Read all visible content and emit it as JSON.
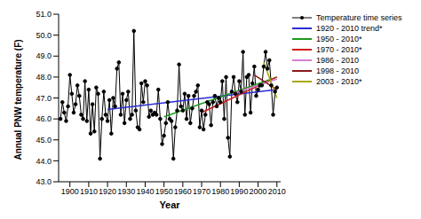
{
  "chart_data": {
    "type": "line",
    "x_label": "Year",
    "y_label": "Annual PNW temperature (F)",
    "x": [
      1895,
      1896,
      1897,
      1898,
      1899,
      1900,
      1901,
      1902,
      1903,
      1904,
      1905,
      1906,
      1907,
      1908,
      1909,
      1910,
      1911,
      1912,
      1913,
      1914,
      1915,
      1916,
      1917,
      1918,
      1919,
      1920,
      1921,
      1922,
      1923,
      1924,
      1925,
      1926,
      1927,
      1928,
      1929,
      1930,
      1931,
      1932,
      1933,
      1934,
      1935,
      1936,
      1937,
      1938,
      1939,
      1940,
      1941,
      1942,
      1943,
      1944,
      1945,
      1946,
      1947,
      1948,
      1949,
      1950,
      1951,
      1952,
      1953,
      1954,
      1955,
      1956,
      1957,
      1958,
      1959,
      1960,
      1961,
      1962,
      1963,
      1964,
      1965,
      1966,
      1967,
      1968,
      1969,
      1970,
      1971,
      1972,
      1973,
      1974,
      1975,
      1976,
      1977,
      1978,
      1979,
      1980,
      1981,
      1982,
      1983,
      1984,
      1985,
      1986,
      1987,
      1988,
      1989,
      1990,
      1991,
      1992,
      1993,
      1994,
      1995,
      1996,
      1997,
      1998,
      1999,
      2000,
      2001,
      2002,
      2003,
      2004,
      2005,
      2006,
      2007,
      2008,
      2009,
      2010
    ],
    "series": [
      {
        "name": "Temperature time series",
        "color": "#000000",
        "marker": "circle",
        "values": [
          46.0,
          46.8,
          46.3,
          45.9,
          46.6,
          48.1,
          47.2,
          46.3,
          46.7,
          47.6,
          47.1,
          46.2,
          46.0,
          47.8,
          45.9,
          47.4,
          45.3,
          46.7,
          45.4,
          47.5,
          47.2,
          44.1,
          46.0,
          47.3,
          46.2,
          45.9,
          46.9,
          45.3,
          47.0,
          46.6,
          48.4,
          48.7,
          46.2,
          47.2,
          45.8,
          46.9,
          47.3,
          46.0,
          46.2,
          50.2,
          46.4,
          45.6,
          45.5,
          47.7,
          46.8,
          47.8,
          47.6,
          46.1,
          46.4,
          46.2,
          46.3,
          46.2,
          47.4,
          46.0,
          44.8,
          45.2,
          45.8,
          46.8,
          46.0,
          45.9,
          44.1,
          45.6,
          46.4,
          48.6,
          46.6,
          46.4,
          47.2,
          46.0,
          47.1,
          45.8,
          46.5,
          47.1,
          47.3,
          47.6,
          45.6,
          46.4,
          45.5,
          46.2,
          46.8,
          46.7,
          45.7,
          46.8,
          47.1,
          46.6,
          47.0,
          46.8,
          47.8,
          46.0,
          48.0,
          45.1,
          44.2,
          47.3,
          48.0,
          47.2,
          46.8,
          47.8,
          47.3,
          49.2,
          46.2,
          48.0,
          48.1,
          46.3,
          47.7,
          48.5,
          47.1,
          47.4,
          47.6,
          47.6,
          48.5,
          49.2,
          48.4,
          48.8,
          47.6,
          46.2,
          47.3,
          47.5
        ]
      },
      {
        "name": "1920 - 2010 trend*",
        "color": "#2b2bd6",
        "x": [
          1920,
          2010
        ],
        "values": [
          46.45,
          47.4
        ]
      },
      {
        "name": "1950 - 2010*",
        "color": "#1a9a1a",
        "x": [
          1950,
          2010
        ],
        "values": [
          46.1,
          48.0
        ]
      },
      {
        "name": "1970 - 2010*",
        "color": "#d01818",
        "x": [
          1970,
          2010
        ],
        "values": [
          46.3,
          48.0
        ]
      },
      {
        "name": "1986 - 2010",
        "color": "#d67fd6",
        "x": [
          1986,
          2010
        ],
        "values": [
          47.2,
          47.9
        ]
      },
      {
        "name": "1998 - 2010",
        "color": "#8b1a1a",
        "x": [
          1998,
          2010
        ],
        "values": [
          48.1,
          47.4
        ]
      },
      {
        "name": "2003 - 2010*",
        "color": "#a8a800",
        "x": [
          2003,
          2010
        ],
        "values": [
          48.7,
          47.0
        ]
      }
    ],
    "xlim": [
      1894,
      2012
    ],
    "xticks": [
      1900,
      1910,
      1920,
      1930,
      1940,
      1950,
      1960,
      1970,
      1980,
      1990,
      2000,
      2010
    ],
    "ylim": [
      43,
      51
    ],
    "yticks": [
      {
        "value": 43,
        "label": "43.0"
      },
      {
        "value": 44,
        "label": "44.0"
      },
      {
        "value": 45,
        "label": "45.0"
      },
      {
        "value": 46,
        "label": "46.0"
      },
      {
        "value": 47,
        "label": "47.0"
      },
      {
        "value": 48,
        "label": "48.0"
      },
      {
        "value": 49,
        "label": "49.0"
      },
      {
        "value": 50,
        "label": "50.0"
      },
      {
        "value": 51,
        "label": "51.0"
      }
    ],
    "grid": false,
    "legend": "right"
  }
}
